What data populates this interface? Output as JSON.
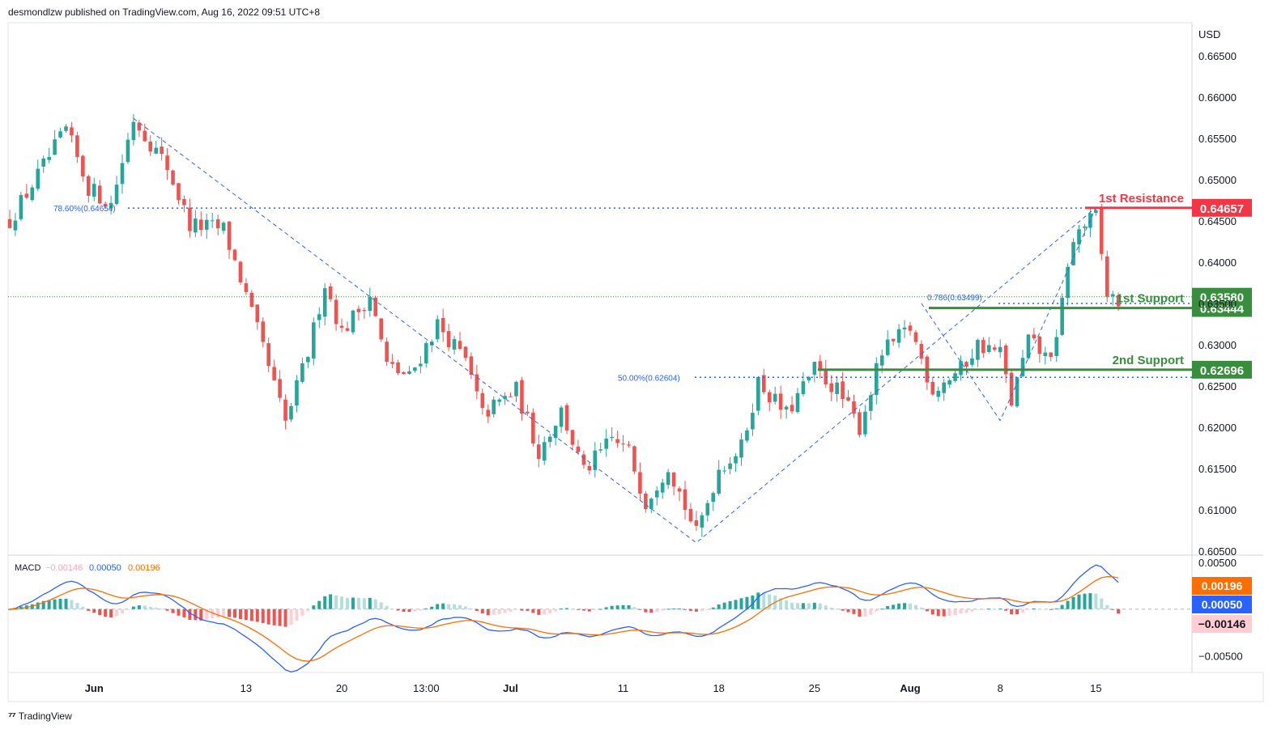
{
  "header": {
    "published": "desmondlzw published on TradingView.com, Aug 16, 2022 09:51 UTC+8"
  },
  "footer": {
    "brand": "TradingView",
    "logo_icon": "tradingview-logo-icon"
  },
  "colors": {
    "up": "#26a69a",
    "down": "#ef5350",
    "fib": "#2962ff",
    "resistance": "#f23645",
    "support": "#388e3c",
    "macd": "#2962ff",
    "signal": "#ff6d00"
  },
  "chart_data": {
    "type": "candlestick",
    "currency": "USD",
    "y_ticks": [
      "0.66500",
      "0.66000",
      "0.65500",
      "0.65000",
      "0.64500",
      "0.64000",
      "0.63500",
      "0.63000",
      "0.62500",
      "0.62000",
      "0.61500",
      "0.61000",
      "0.60500"
    ],
    "ylim": [
      0.6045,
      0.669
    ],
    "x_ticks": [
      {
        "label": "Jun",
        "i": 15,
        "bold": true
      },
      {
        "label": "13",
        "i": 42
      },
      {
        "label": "20",
        "i": 59
      },
      {
        "label": "13:00",
        "i": 74
      },
      {
        "label": "Jul",
        "i": 89,
        "bold": true
      },
      {
        "label": "11",
        "i": 109
      },
      {
        "label": "18",
        "i": 126
      },
      {
        "label": "25",
        "i": 143
      },
      {
        "label": "Aug",
        "i": 160,
        "bold": true
      },
      {
        "label": "8",
        "i": 176
      },
      {
        "label": "15",
        "i": 193
      }
    ],
    "candles_count": 198,
    "key_points": [
      [
        0,
        0.645
      ],
      [
        10,
        0.656
      ],
      [
        14,
        0.649
      ],
      [
        18,
        0.647
      ],
      [
        22,
        0.6574
      ],
      [
        28,
        0.6515
      ],
      [
        32,
        0.6445
      ],
      [
        38,
        0.644
      ],
      [
        41,
        0.638
      ],
      [
        45,
        0.6295
      ],
      [
        49,
        0.6205
      ],
      [
        53,
        0.629
      ],
      [
        56,
        0.6375
      ],
      [
        59,
        0.6315
      ],
      [
        64,
        0.636
      ],
      [
        67,
        0.6275
      ],
      [
        71,
        0.626
      ],
      [
        76,
        0.6325
      ],
      [
        81,
        0.628
      ],
      [
        84,
        0.6215
      ],
      [
        90,
        0.6245
      ],
      [
        94,
        0.617
      ],
      [
        98,
        0.622
      ],
      [
        102,
        0.6145
      ],
      [
        107,
        0.6185
      ],
      [
        110,
        0.617
      ],
      [
        113,
        0.611
      ],
      [
        117,
        0.6155
      ],
      [
        122,
        0.607
      ],
      [
        126,
        0.615
      ],
      [
        130,
        0.6175
      ],
      [
        133,
        0.6255
      ],
      [
        138,
        0.6215
      ],
      [
        143,
        0.627
      ],
      [
        147,
        0.6245
      ],
      [
        151,
        0.62
      ],
      [
        155,
        0.629
      ],
      [
        160,
        0.632
      ],
      [
        164,
        0.6245
      ],
      [
        169,
        0.627
      ],
      [
        172,
        0.63
      ],
      [
        176,
        0.629
      ],
      [
        178,
        0.623
      ],
      [
        181,
        0.6305
      ],
      [
        184,
        0.6285
      ],
      [
        186,
        0.63
      ],
      [
        188,
        0.64
      ],
      [
        190,
        0.644
      ],
      [
        193,
        0.6455
      ],
      [
        195,
        0.636
      ],
      [
        197,
        0.6353
      ]
    ],
    "annotations": {
      "fib_786_left": {
        "label": "78.60%(0.64654)",
        "price": 0.64654
      },
      "fib_50": {
        "label": "50.00%(0.62604)",
        "price": 0.62604
      },
      "fib_786_right": {
        "label": "0.786(0.63499)",
        "price": 0.63499
      },
      "last_price_line": 0.6358
    },
    "levels": [
      {
        "name": "1st Resistance",
        "price": 0.64657,
        "value": "0.64657",
        "color": "#f23645"
      },
      {
        "name": "1st Support",
        "price": 0.63444,
        "value": "0.63444",
        "color": "#388e3c"
      },
      {
        "name": "2nd Support",
        "price": 0.62696,
        "value": "0.62696",
        "color": "#388e3c"
      }
    ],
    "last_price": {
      "value": "0.63580",
      "color": "#388e3c"
    },
    "macd": {
      "label": "MACD",
      "hist_value": "−0.00146",
      "macd_value": "0.00050",
      "signal_value": "0.00196",
      "y_ticks": [
        "0.00500",
        "−0.00500"
      ],
      "ylim": [
        -0.0068,
        0.0058
      ],
      "badge_signal": "0.00196",
      "badge_macd": "0.00050",
      "badge_hist": "−0.00146"
    }
  }
}
